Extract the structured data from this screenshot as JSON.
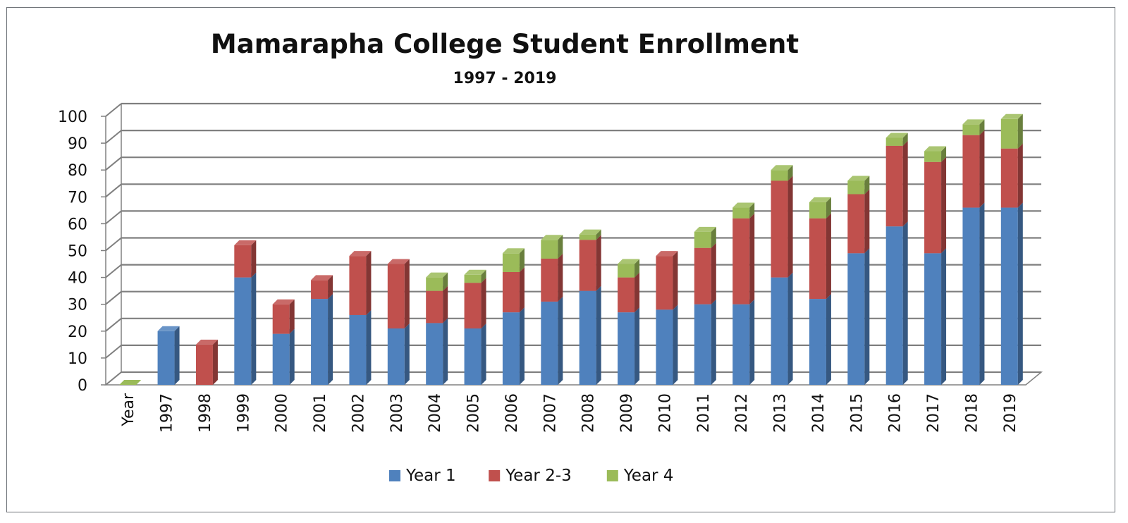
{
  "chart_data": {
    "type": "bar",
    "stacked": true,
    "style": "3d",
    "title": "Mamarapha College Student Enrollment",
    "subtitle": "1997 - 2019",
    "xlabel": "",
    "ylabel": "",
    "ylim": [
      0,
      100
    ],
    "yticks": [
      0,
      10,
      20,
      30,
      40,
      50,
      60,
      70,
      80,
      90,
      100
    ],
    "grid": true,
    "legend_position": "bottom",
    "categories": [
      "Year",
      "1997",
      "1998",
      "1999",
      "2000",
      "2001",
      "2002",
      "2003",
      "2004",
      "2005",
      "2006",
      "2007",
      "2008",
      "2009",
      "2010",
      "2011",
      "2012",
      "2013",
      "2014",
      "2015",
      "2016",
      "2017",
      "2018",
      "2019"
    ],
    "series": [
      {
        "name": "Year 1",
        "color": "#4f81bd",
        "values": [
          0,
          20,
          0,
          40,
          19,
          32,
          26,
          21,
          23,
          21,
          27,
          31,
          35,
          27,
          28,
          30,
          30,
          40,
          32,
          49,
          59,
          49,
          66,
          66
        ]
      },
      {
        "name": "Year 2-3",
        "color": "#c0504d",
        "values": [
          0,
          0,
          15,
          12,
          11,
          7,
          22,
          24,
          12,
          17,
          15,
          16,
          19,
          13,
          20,
          21,
          32,
          36,
          30,
          22,
          30,
          34,
          27,
          22
        ]
      },
      {
        "name": "Year 4",
        "color": "#9bbb59",
        "values": [
          0,
          0,
          0,
          0,
          0,
          0,
          0,
          0,
          5,
          3,
          7,
          7,
          2,
          5,
          0,
          6,
          4,
          4,
          6,
          5,
          3,
          4,
          4,
          11
        ]
      }
    ]
  }
}
